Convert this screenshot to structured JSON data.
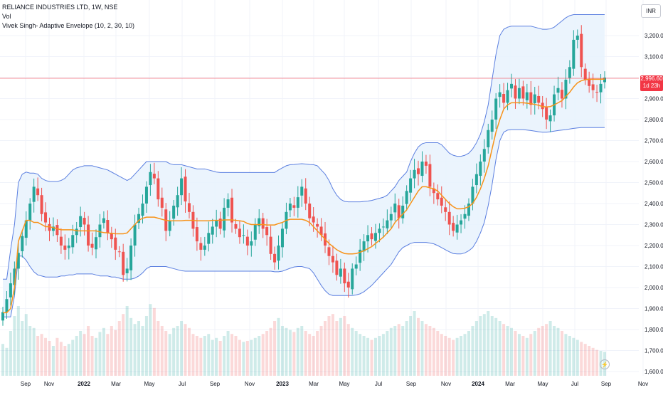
{
  "header": {
    "symbol_line": "RELIANCE INDUSTRIES LTD, 1W, NSE",
    "volume_label": "Vol",
    "indicator_label": "Vivek Singh- Adaptive Envelope (10, 2, 30, 10)"
  },
  "currency": "INR",
  "last_price": {
    "value": "2,996.60",
    "countdown": "1d 23h",
    "price": 2996.6
  },
  "colors": {
    "up": "#26a69a",
    "down": "#ef5350",
    "envelope": "#5b7fe0",
    "envelope_fill": "#e8f2fd",
    "mid_line": "#f7931a",
    "last_price_line": "#f23645"
  },
  "chart_data": {
    "type": "candlestick",
    "series": [
      {
        "name": "Vivek Singh- Adaptive Envelope (10, 2, 30, 10)"
      },
      {
        "name": "Vol"
      }
    ],
    "y_axis": {
      "range": [
        1600,
        3300
      ],
      "ticks": [
        1600,
        1700,
        1800,
        1900,
        2000,
        2100,
        2200,
        2300,
        2400,
        2500,
        2600,
        2700,
        2800,
        2900,
        3000,
        3100,
        3200
      ],
      "tick_labels": [
        "1,600.00",
        "1,700.00",
        "1,800.00",
        "1,900.00",
        "2,000.00",
        "2,100.00",
        "2,200.00",
        "2,300.00",
        "2,400.00",
        "2,500.00",
        "2,600.00",
        "2,700.00",
        "2,800.00",
        "2,900.00",
        "3,000.00",
        "3,100.00",
        "3,200.00"
      ]
    },
    "x_axis": {
      "labels": [
        "Sep",
        "Nov",
        "2022",
        "Mar",
        "May",
        "Jul",
        "Sep",
        "Nov",
        "2023",
        "Mar",
        "May",
        "Jul",
        "Sep",
        "Nov",
        "2024",
        "Mar",
        "May",
        "Jul",
        "Sep",
        "Nov"
      ]
    },
    "closes": [
      1883,
      1945,
      2020,
      2090,
      2165,
      2245,
      2320,
      2400,
      2480,
      2440,
      2350,
      2310,
      2270,
      2290,
      2250,
      2200,
      2180,
      2200,
      2250,
      2280,
      2340,
      2300,
      2200,
      2190,
      2240,
      2300,
      2330,
      2260,
      2230,
      2180,
      2170,
      2060,
      2090,
      2200,
      2300,
      2350,
      2400,
      2480,
      2550,
      2520,
      2420,
      2380,
      2270,
      2320,
      2390,
      2440,
      2520,
      2410,
      2360,
      2280,
      2220,
      2180,
      2200,
      2260,
      2290,
      2320,
      2280,
      2380,
      2420,
      2310,
      2280,
      2240,
      2250,
      2200,
      2220,
      2300,
      2330,
      2280,
      2250,
      2160,
      2120,
      2200,
      2280,
      2360,
      2400,
      2380,
      2430,
      2480,
      2400,
      2330,
      2310,
      2290,
      2250,
      2200,
      2150,
      2120,
      2060,
      2090,
      2020,
      2000,
      2090,
      2110,
      2180,
      2220,
      2250,
      2230,
      2260,
      2280,
      2290,
      2320,
      2350,
      2400,
      2330,
      2390,
      2460,
      2520,
      2560,
      2540,
      2600,
      2580,
      2480,
      2450,
      2420,
      2390,
      2360,
      2300,
      2270,
      2300,
      2320,
      2350,
      2400,
      2480,
      2540,
      2600,
      2660,
      2750,
      2800,
      2900,
      2930,
      2880,
      2940,
      2970,
      2900,
      2950,
      2900,
      2930,
      2870,
      2920,
      2880,
      2850,
      2800,
      2820,
      2920,
      2950,
      2900,
      2990,
      3050,
      3180,
      3200,
      3050,
      2990,
      2960,
      2940,
      2930,
      2970,
      3000
    ],
    "envelope_upper": [
      2040,
      2040,
      2180,
      2300,
      2500,
      2540,
      2550,
      2545,
      2545,
      2540,
      2520,
      2510,
      2505,
      2505,
      2505,
      2510,
      2520,
      2540,
      2560,
      2570,
      2575,
      2580,
      2580,
      2580,
      2575,
      2570,
      2565,
      2560,
      2550,
      2540,
      2530,
      2520,
      2510,
      2520,
      2540,
      2560,
      2580,
      2600,
      2600,
      2600,
      2600,
      2600,
      2600,
      2590,
      2585,
      2585,
      2585,
      2580,
      2575,
      2570,
      2565,
      2565,
      2565,
      2560,
      2555,
      2550,
      2548,
      2548,
      2548,
      2548,
      2548,
      2548,
      2548,
      2548,
      2548,
      2548,
      2548,
      2548,
      2548,
      2548,
      2548,
      2560,
      2570,
      2580,
      2585,
      2586,
      2588,
      2590,
      2588,
      2586,
      2585,
      2580,
      2560,
      2540,
      2510,
      2470,
      2440,
      2420,
      2410,
      2408,
      2408,
      2408,
      2408,
      2410,
      2412,
      2415,
      2420,
      2425,
      2430,
      2440,
      2460,
      2480,
      2510,
      2530,
      2550,
      2600,
      2640,
      2670,
      2685,
      2690,
      2690,
      2690,
      2690,
      2680,
      2660,
      2640,
      2630,
      2625,
      2625,
      2630,
      2640,
      2660,
      2690,
      2730,
      2790,
      2870,
      2990,
      3110,
      3200,
      3230,
      3240,
      3245,
      3245,
      3245,
      3245,
      3245,
      3245,
      3240,
      3235,
      3230,
      3230,
      3232,
      3240,
      3255,
      3270,
      3285,
      3295,
      3300,
      3300,
      3300,
      3300,
      3300,
      3300,
      3300,
      3300,
      3300
    ],
    "envelope_lower": [
      1860,
      1860,
      1860,
      1960,
      2150,
      2150,
      2130,
      2100,
      2075,
      2060,
      2055,
      2050,
      2050,
      2050,
      2050,
      2055,
      2055,
      2060,
      2060,
      2065,
      2065,
      2065,
      2065,
      2065,
      2060,
      2055,
      2055,
      2055,
      2050,
      2050,
      2045,
      2040,
      2040,
      2040,
      2045,
      2055,
      2070,
      2090,
      2100,
      2100,
      2100,
      2100,
      2100,
      2095,
      2090,
      2085,
      2080,
      2078,
      2078,
      2078,
      2078,
      2078,
      2078,
      2078,
      2078,
      2078,
      2078,
      2078,
      2078,
      2078,
      2078,
      2078,
      2078,
      2078,
      2078,
      2078,
      2078,
      2078,
      2078,
      2078,
      2075,
      2075,
      2078,
      2085,
      2092,
      2098,
      2100,
      2100,
      2095,
      2090,
      2070,
      2040,
      2010,
      1985,
      1968,
      1962,
      1962,
      1962,
      1962,
      1962,
      1962,
      1965,
      1970,
      1980,
      1995,
      2010,
      2030,
      2050,
      2070,
      2090,
      2110,
      2140,
      2170,
      2190,
      2200,
      2210,
      2215,
      2215,
      2215,
      2215,
      2212,
      2208,
      2200,
      2190,
      2180,
      2170,
      2162,
      2160,
      2160,
      2165,
      2175,
      2190,
      2220,
      2260,
      2310,
      2390,
      2490,
      2610,
      2700,
      2740,
      2750,
      2752,
      2752,
      2752,
      2752,
      2750,
      2748,
      2745,
      2742,
      2740,
      2740,
      2742,
      2745,
      2748,
      2750,
      2752,
      2755,
      2758,
      2760,
      2762,
      2762,
      2762,
      2762,
      2762,
      2762,
      2762
    ],
    "mid_line": [
      1880,
      1880,
      1900,
      2000,
      2220,
      2270,
      2320,
      2320,
      2310,
      2310,
      2300,
      2290,
      2290,
      2285,
      2280,
      2275,
      2275,
      2275,
      2275,
      2270,
      2270,
      2270,
      2270,
      2270,
      2270,
      2265,
      2262,
      2260,
      2258,
      2256,
      2256,
      2256,
      2260,
      2280,
      2300,
      2320,
      2330,
      2335,
      2335,
      2335,
      2330,
      2325,
      2320,
      2318,
      2318,
      2318,
      2318,
      2320,
      2320,
      2320,
      2318,
      2318,
      2318,
      2318,
      2320,
      2320,
      2320,
      2322,
      2322,
      2322,
      2320,
      2318,
      2315,
      2305,
      2300,
      2300,
      2300,
      2300,
      2298,
      2298,
      2298,
      2305,
      2310,
      2320,
      2325,
      2325,
      2325,
      2325,
      2320,
      2310,
      2290,
      2270,
      2250,
      2230,
      2210,
      2195,
      2180,
      2170,
      2162,
      2160,
      2160,
      2162,
      2168,
      2175,
      2185,
      2195,
      2210,
      2225,
      2240,
      2260,
      2280,
      2310,
      2330,
      2350,
      2370,
      2400,
      2430,
      2460,
      2480,
      2480,
      2475,
      2470,
      2460,
      2440,
      2420,
      2400,
      2385,
      2375,
      2375,
      2378,
      2385,
      2400,
      2430,
      2470,
      2520,
      2580,
      2660,
      2740,
      2800,
      2850,
      2870,
      2880,
      2880,
      2880,
      2880,
      2878,
      2876,
      2872,
      2868,
      2862,
      2860,
      2862,
      2870,
      2880,
      2890,
      2910,
      2930,
      2955,
      2975,
      2985,
      2990,
      2992,
      2992,
      2992,
      2992,
      2993
    ],
    "volume_heights": [
      0.32,
      0.28,
      0.45,
      0.6,
      0.7,
      0.55,
      0.62,
      0.5,
      0.48,
      0.4,
      0.42,
      0.38,
      0.35,
      0.3,
      0.38,
      0.34,
      0.3,
      0.32,
      0.36,
      0.4,
      0.45,
      0.42,
      0.5,
      0.4,
      0.38,
      0.44,
      0.48,
      0.42,
      0.5,
      0.46,
      0.55,
      0.62,
      0.7,
      0.58,
      0.52,
      0.55,
      0.5,
      0.6,
      0.72,
      0.68,
      0.55,
      0.5,
      0.45,
      0.42,
      0.48,
      0.5,
      0.55,
      0.52,
      0.48,
      0.42,
      0.4,
      0.38,
      0.4,
      0.42,
      0.36,
      0.38,
      0.35,
      0.4,
      0.45,
      0.42,
      0.4,
      0.36,
      0.34,
      0.35,
      0.36,
      0.38,
      0.4,
      0.42,
      0.45,
      0.48,
      0.55,
      0.58,
      0.5,
      0.48,
      0.46,
      0.44,
      0.48,
      0.5,
      0.45,
      0.42,
      0.4,
      0.45,
      0.5,
      0.55,
      0.6,
      0.62,
      0.55,
      0.58,
      0.6,
      0.52,
      0.48,
      0.45,
      0.42,
      0.4,
      0.38,
      0.36,
      0.38,
      0.4,
      0.42,
      0.45,
      0.48,
      0.5,
      0.52,
      0.5,
      0.55,
      0.6,
      0.65,
      0.58,
      0.55,
      0.52,
      0.5,
      0.48,
      0.45,
      0.42,
      0.4,
      0.38,
      0.36,
      0.38,
      0.4,
      0.42,
      0.45,
      0.5,
      0.55,
      0.6,
      0.62,
      0.65,
      0.6,
      0.58,
      0.55,
      0.52,
      0.5,
      0.48,
      0.45,
      0.42,
      0.4,
      0.38,
      0.42,
      0.45,
      0.48,
      0.5,
      0.52,
      0.55,
      0.5,
      0.48,
      0.45,
      0.42,
      0.4,
      0.38,
      0.36,
      0.34,
      0.32,
      0.3,
      0.28,
      0.26,
      0.25,
      0.24,
      0.23,
      0.22
    ],
    "legend_position": "top-left",
    "grid": true
  }
}
